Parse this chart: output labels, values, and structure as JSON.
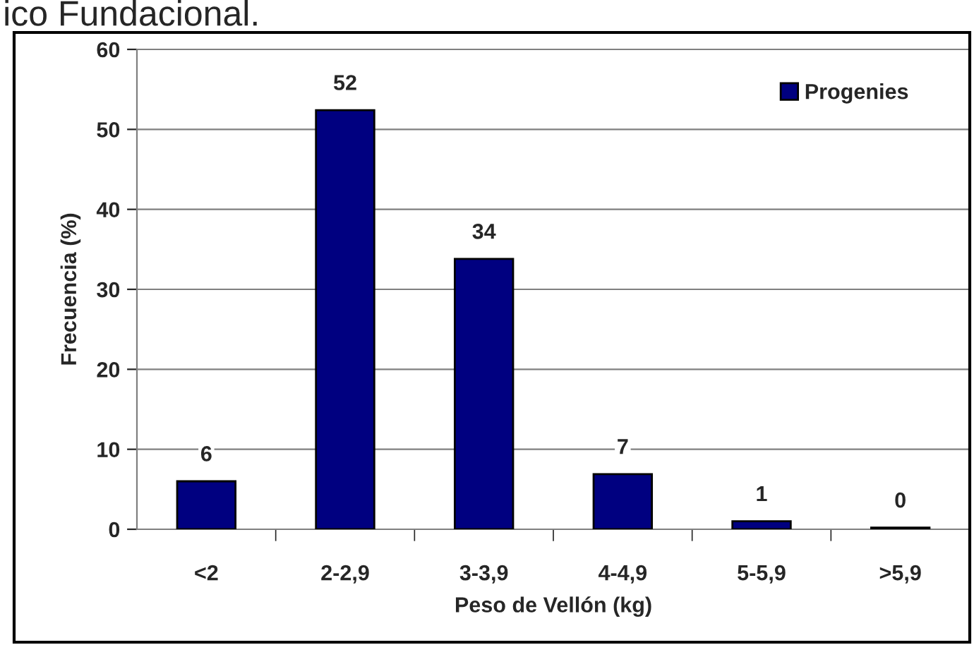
{
  "chart_data": {
    "type": "bar",
    "xlabel": "Peso de Vellón (kg)",
    "ylabel": "Frecuencia (%)",
    "annotations": [
      "ico Fundacional."
    ],
    "categories": [
      "<2",
      "2-2,9",
      "3-3,9",
      "4-4,9",
      "5-5,9",
      ">5,9"
    ],
    "series": [
      {
        "name": "Progenies",
        "color": "#000080",
        "values": [
          6,
          52.4,
          33.8,
          6.9,
          1,
          0.2
        ],
        "value_labels": [
          "6",
          "52",
          "34",
          "7",
          "1",
          "0"
        ]
      }
    ],
    "ylim": [
      0,
      60
    ],
    "yticks": [
      0,
      10,
      20,
      30,
      40,
      50,
      60
    ],
    "grid": "y",
    "legend": "top right"
  }
}
